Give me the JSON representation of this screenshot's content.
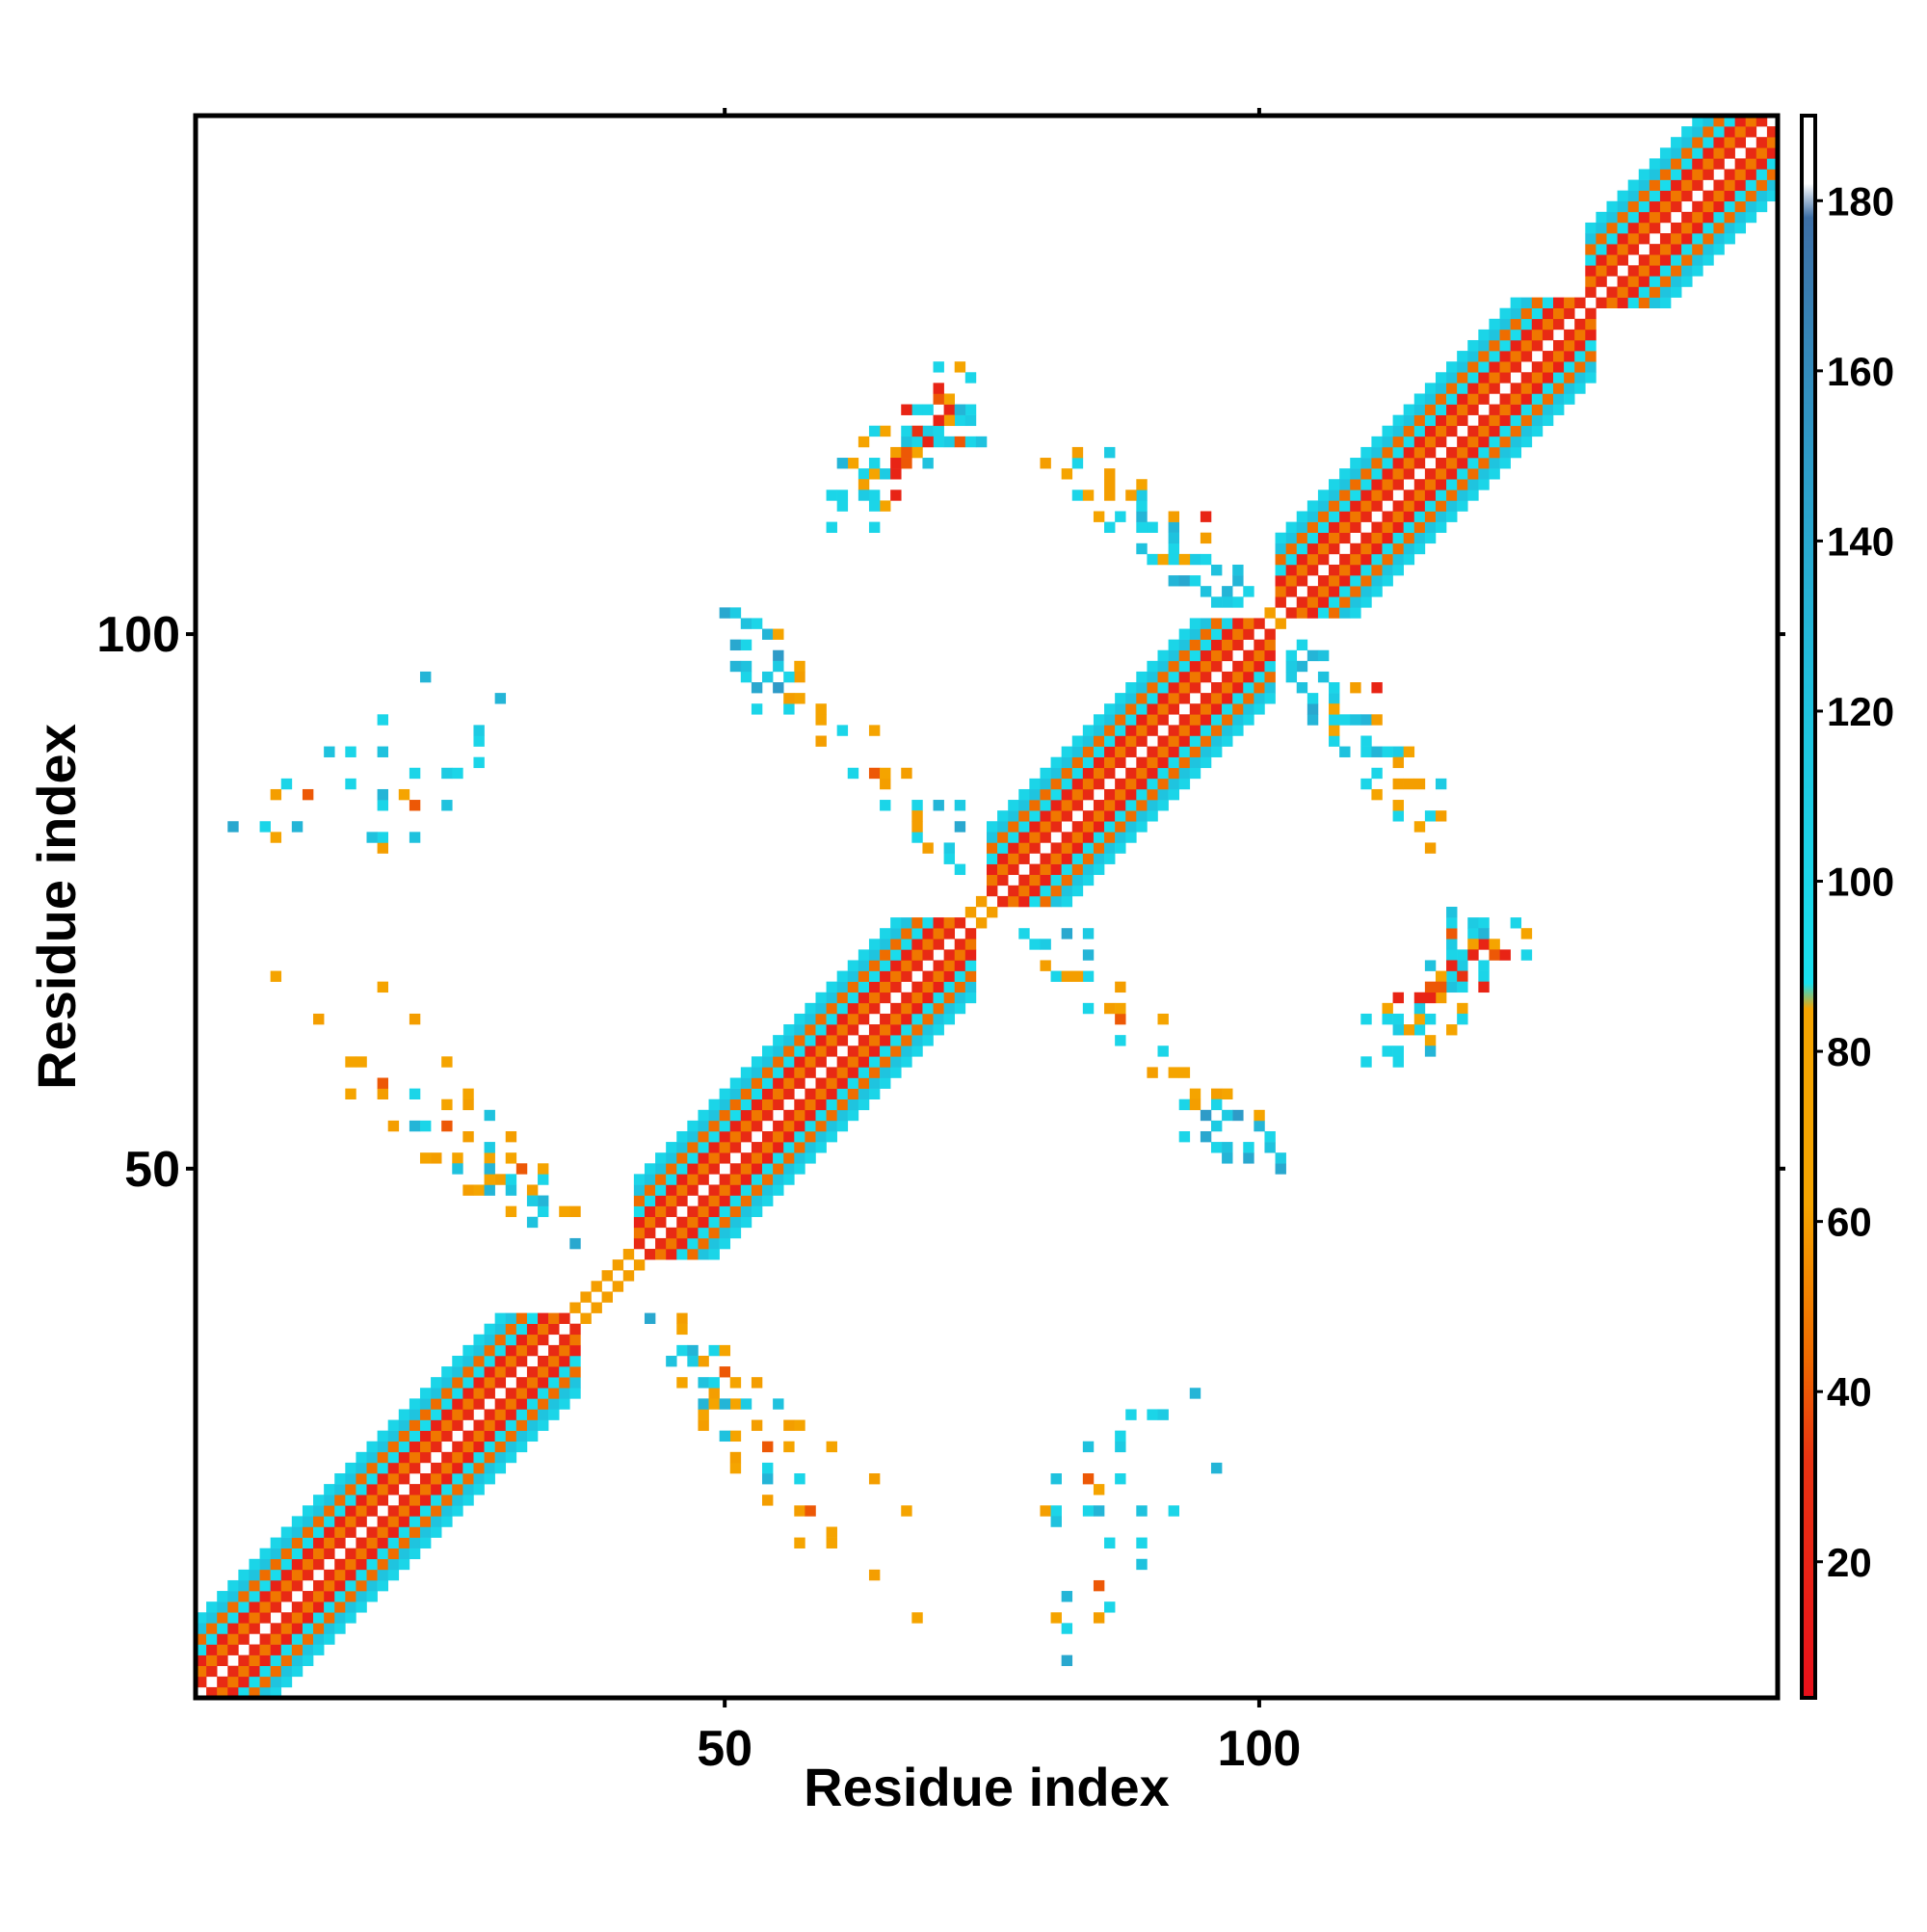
{
  "chart_data": {
    "type": "heatmap",
    "title": "",
    "xlabel": "Residue index",
    "ylabel": "Residue index",
    "xlim": [
      1,
      148
    ],
    "ylim": [
      1,
      148
    ],
    "x_ticks": [
      50,
      100
    ],
    "y_ticks": [
      50,
      100
    ],
    "colorbar": {
      "range": [
        4,
        190
      ],
      "ticks": [
        20,
        40,
        60,
        80,
        100,
        120,
        140,
        160,
        180
      ],
      "stops": [
        {
          "value": 4,
          "color": "#e8101a"
        },
        {
          "value": 32,
          "color": "#e83312"
        },
        {
          "value": 44,
          "color": "#ef6a00"
        },
        {
          "value": 62,
          "color": "#f5a400"
        },
        {
          "value": 85,
          "color": "#f5a400"
        },
        {
          "value": 88,
          "color": "#19e0ee"
        },
        {
          "value": 120,
          "color": "#1fc2de"
        },
        {
          "value": 150,
          "color": "#2e9bc8"
        },
        {
          "value": 178,
          "color": "#3d6fa6"
        },
        {
          "value": 182,
          "color": "#ffffff"
        },
        {
          "value": 190,
          "color": "#ffffff"
        }
      ]
    },
    "band_pattern_offsets": [
      {
        "offset": 1,
        "value": 25
      },
      {
        "offset": 2,
        "value": 48
      },
      {
        "offset": 3,
        "value": 18
      },
      {
        "offset": 4,
        "value": 92
      },
      {
        "offset": 5,
        "value": 45
      },
      {
        "offset": 6,
        "value": 118
      },
      {
        "offset": 7,
        "value": 100
      }
    ],
    "helix_segments": [
      {
        "start": 1,
        "end": 35
      },
      {
        "start": 42,
        "end": 72
      },
      {
        "start": 75,
        "end": 100
      },
      {
        "start": 102,
        "end": 130
      },
      {
        "start": 131,
        "end": 148
      }
    ],
    "contacts": [
      {
        "x": 50,
        "y": 102,
        "v": 140
      },
      {
        "x": 51,
        "y": 102,
        "v": 110
      },
      {
        "x": 52,
        "y": 101,
        "v": 120
      },
      {
        "x": 53,
        "y": 101,
        "v": 100
      },
      {
        "x": 51,
        "y": 99,
        "v": 140
      },
      {
        "x": 54,
        "y": 100,
        "v": 130
      },
      {
        "x": 55,
        "y": 100,
        "v": 70
      },
      {
        "x": 55,
        "y": 98,
        "v": 150
      },
      {
        "x": 57,
        "y": 97,
        "v": 80
      },
      {
        "x": 57,
        "y": 96,
        "v": 60
      },
      {
        "x": 57,
        "y": 94,
        "v": 70
      },
      {
        "x": 61,
        "y": 91,
        "v": 100
      },
      {
        "x": 64,
        "y": 91,
        "v": 70
      },
      {
        "x": 64,
        "y": 87,
        "v": 40
      },
      {
        "x": 67,
        "y": 87,
        "v": 60
      },
      {
        "x": 68,
        "y": 84,
        "v": 100
      },
      {
        "x": 70,
        "y": 84,
        "v": 130
      },
      {
        "x": 72,
        "y": 84,
        "v": 110
      },
      {
        "x": 72,
        "y": 82,
        "v": 140
      },
      {
        "x": 4,
        "y": 82,
        "v": 140
      },
      {
        "x": 7,
        "y": 82,
        "v": 100
      },
      {
        "x": 8,
        "y": 81,
        "v": 70
      },
      {
        "x": 10,
        "y": 82,
        "v": 130
      },
      {
        "x": 8,
        "y": 85,
        "v": 60
      },
      {
        "x": 9,
        "y": 86,
        "v": 100
      },
      {
        "x": 11,
        "y": 85,
        "v": 40
      },
      {
        "x": 13,
        "y": 89,
        "v": 120
      },
      {
        "x": 15,
        "y": 89,
        "v": 100
      },
      {
        "x": 15,
        "y": 86,
        "v": 100
      },
      {
        "x": 18,
        "y": 89,
        "v": 120
      },
      {
        "x": 18,
        "y": 92,
        "v": 100
      },
      {
        "x": 22,
        "y": 96,
        "v": 130
      },
      {
        "x": 8,
        "y": 68,
        "v": 70
      },
      {
        "x": 12,
        "y": 64,
        "v": 60
      },
      {
        "x": 15,
        "y": 60,
        "v": 70
      },
      {
        "x": 16,
        "y": 60,
        "v": 70
      },
      {
        "x": 15,
        "y": 57,
        "v": 70
      },
      {
        "x": 18,
        "y": 57,
        "v": 60
      },
      {
        "x": 18,
        "y": 58,
        "v": 40
      },
      {
        "x": 21,
        "y": 57,
        "v": 100
      },
      {
        "x": 19,
        "y": 54,
        "v": 60
      },
      {
        "x": 21,
        "y": 54,
        "v": 130
      },
      {
        "x": 22,
        "y": 54,
        "v": 100
      },
      {
        "x": 24,
        "y": 54,
        "v": 40
      },
      {
        "x": 22,
        "y": 51,
        "v": 70
      },
      {
        "x": 23,
        "y": 51,
        "v": 60
      },
      {
        "x": 25,
        "y": 51,
        "v": 70
      },
      {
        "x": 25,
        "y": 50,
        "v": 120
      },
      {
        "x": 28,
        "y": 51,
        "v": 70
      },
      {
        "x": 26,
        "y": 48,
        "v": 60
      },
      {
        "x": 27,
        "y": 48,
        "v": 70
      },
      {
        "x": 28,
        "y": 48,
        "v": 130
      },
      {
        "x": 29,
        "y": 49,
        "v": 60
      },
      {
        "x": 30,
        "y": 48,
        "v": 60
      },
      {
        "x": 32,
        "y": 48,
        "v": 60
      },
      {
        "x": 32,
        "y": 45,
        "v": 120
      },
      {
        "x": 43,
        "y": 36,
        "v": 140
      },
      {
        "x": 46,
        "y": 36,
        "v": 60
      },
      {
        "x": 46,
        "y": 35,
        "v": 70
      },
      {
        "x": 46,
        "y": 33,
        "v": 100
      },
      {
        "x": 47,
        "y": 33,
        "v": 130
      },
      {
        "x": 49,
        "y": 33,
        "v": 100
      },
      {
        "x": 50,
        "y": 33,
        "v": 70
      },
      {
        "x": 47,
        "y": 32,
        "v": 110
      },
      {
        "x": 50,
        "y": 31,
        "v": 40
      },
      {
        "x": 46,
        "y": 30,
        "v": 70
      },
      {
        "x": 48,
        "y": 30,
        "v": 120
      },
      {
        "x": 49,
        "y": 30,
        "v": 100
      },
      {
        "x": 51,
        "y": 30,
        "v": 70
      },
      {
        "x": 53,
        "y": 30,
        "v": 60
      },
      {
        "x": 49,
        "y": 28,
        "v": 70
      },
      {
        "x": 50,
        "y": 28,
        "v": 130
      },
      {
        "x": 52,
        "y": 28,
        "v": 110
      },
      {
        "x": 55,
        "y": 28,
        "v": 120
      },
      {
        "x": 53,
        "y": 26,
        "v": 60
      },
      {
        "x": 56,
        "y": 26,
        "v": 60
      },
      {
        "x": 57,
        "y": 26,
        "v": 70
      },
      {
        "x": 56,
        "y": 24,
        "v": 70
      },
      {
        "x": 60,
        "y": 24,
        "v": 70
      },
      {
        "x": 64,
        "y": 21,
        "v": 60
      },
      {
        "x": 67,
        "y": 18,
        "v": 70
      },
      {
        "x": 80,
        "y": 18,
        "v": 60
      },
      {
        "x": 81,
        "y": 18,
        "v": 100
      },
      {
        "x": 81,
        "y": 17,
        "v": 120
      },
      {
        "x": 84,
        "y": 18,
        "v": 100
      },
      {
        "x": 85,
        "y": 18,
        "v": 130
      },
      {
        "x": 81,
        "y": 21,
        "v": 120
      },
      {
        "x": 84,
        "y": 21,
        "v": 40
      },
      {
        "x": 85,
        "y": 20,
        "v": 70
      },
      {
        "x": 87,
        "y": 21,
        "v": 100
      },
      {
        "x": 84,
        "y": 24,
        "v": 120
      },
      {
        "x": 87,
        "y": 24,
        "v": 110
      },
      {
        "x": 87,
        "y": 25,
        "v": 100
      },
      {
        "x": 88,
        "y": 27,
        "v": 100
      },
      {
        "x": 90,
        "y": 27,
        "v": 100
      },
      {
        "x": 91,
        "y": 27,
        "v": 110
      },
      {
        "x": 94,
        "y": 29,
        "v": 130
      },
      {
        "x": 68,
        "y": 121,
        "v": 100
      },
      {
        "x": 69,
        "y": 121,
        "v": 130
      },
      {
        "x": 71,
        "y": 121,
        "v": 70
      },
      {
        "x": 72,
        "y": 120,
        "v": 100
      },
      {
        "x": 73,
        "y": 120,
        "v": 110
      },
      {
        "x": 69,
        "y": 119,
        "v": 110
      },
      {
        "x": 70,
        "y": 119,
        "v": 40
      },
      {
        "x": 67,
        "y": 118,
        "v": 20
      },
      {
        "x": 68,
        "y": 118,
        "v": 100
      },
      {
        "x": 70,
        "y": 118,
        "v": 130
      },
      {
        "x": 71,
        "y": 118,
        "v": 110
      },
      {
        "x": 72,
        "y": 118,
        "v": 40
      },
      {
        "x": 73,
        "y": 118,
        "v": 100
      },
      {
        "x": 74,
        "y": 118,
        "v": 120
      },
      {
        "x": 66,
        "y": 117,
        "v": 60
      },
      {
        "x": 68,
        "y": 117,
        "v": 20
      },
      {
        "x": 66,
        "y": 116,
        "v": 20
      },
      {
        "x": 67,
        "y": 116,
        "v": 70
      },
      {
        "x": 69,
        "y": 116,
        "v": 120
      },
      {
        "x": 62,
        "y": 116,
        "v": 70
      },
      {
        "x": 63,
        "y": 115,
        "v": 100
      },
      {
        "x": 64,
        "y": 115,
        "v": 100
      },
      {
        "x": 65,
        "y": 115,
        "v": 110
      },
      {
        "x": 63,
        "y": 114,
        "v": 60
      },
      {
        "x": 64,
        "y": 113,
        "v": 100
      },
      {
        "x": 66,
        "y": 113,
        "v": 20
      },
      {
        "x": 65,
        "y": 112,
        "v": 70
      },
      {
        "x": 60,
        "y": 113,
        "v": 100
      },
      {
        "x": 63,
        "y": 113,
        "v": 110
      },
      {
        "x": 60,
        "y": 110,
        "v": 100
      },
      {
        "x": 64,
        "y": 110,
        "v": 100
      },
      {
        "x": 80,
        "y": 116,
        "v": 60
      },
      {
        "x": 83,
        "y": 116,
        "v": 100
      },
      {
        "x": 82,
        "y": 115,
        "v": 70
      },
      {
        "x": 83,
        "y": 113,
        "v": 100
      },
      {
        "x": 84,
        "y": 113,
        "v": 70
      },
      {
        "x": 86,
        "y": 113,
        "v": 60
      },
      {
        "x": 85,
        "y": 111,
        "v": 70
      },
      {
        "x": 87,
        "y": 111,
        "v": 100
      },
      {
        "x": 86,
        "y": 110,
        "v": 100
      },
      {
        "x": 89,
        "y": 110,
        "v": 100
      },
      {
        "x": 90,
        "y": 110,
        "v": 110
      },
      {
        "x": 92,
        "y": 110,
        "v": 30
      },
      {
        "x": 89,
        "y": 108,
        "v": 120
      },
      {
        "x": 90,
        "y": 107,
        "v": 100
      },
      {
        "x": 91,
        "y": 107,
        "v": 70
      },
      {
        "x": 92,
        "y": 107,
        "v": 100
      },
      {
        "x": 94,
        "y": 107,
        "v": 110
      },
      {
        "x": 92,
        "y": 105,
        "v": 130
      },
      {
        "x": 93,
        "y": 105,
        "v": 140
      },
      {
        "x": 94,
        "y": 105,
        "v": 100
      },
      {
        "x": 96,
        "y": 106,
        "v": 100
      },
      {
        "x": 95,
        "y": 104,
        "v": 120
      },
      {
        "x": 97,
        "y": 104,
        "v": 130
      },
      {
        "x": 96,
        "y": 103,
        "v": 110
      },
      {
        "x": 98,
        "y": 103,
        "v": 100
      },
      {
        "x": 97,
        "y": 101,
        "v": 100
      },
      {
        "x": 104,
        "y": 99,
        "v": 100
      },
      {
        "x": 105,
        "y": 98,
        "v": 130
      },
      {
        "x": 106,
        "y": 98,
        "v": 120
      },
      {
        "x": 103,
        "y": 97,
        "v": 110
      },
      {
        "x": 106,
        "y": 96,
        "v": 120
      },
      {
        "x": 107,
        "y": 95,
        "v": 100
      },
      {
        "x": 109,
        "y": 95,
        "v": 60
      },
      {
        "x": 111,
        "y": 95,
        "v": 20
      },
      {
        "x": 107,
        "y": 93,
        "v": 70
      },
      {
        "x": 108,
        "y": 92,
        "v": 100
      },
      {
        "x": 109,
        "y": 92,
        "v": 120
      },
      {
        "x": 110,
        "y": 92,
        "v": 130
      },
      {
        "x": 111,
        "y": 92,
        "v": 60
      },
      {
        "x": 110,
        "y": 90,
        "v": 100
      },
      {
        "x": 111,
        "y": 89,
        "v": 130
      },
      {
        "x": 112,
        "y": 89,
        "v": 100
      },
      {
        "x": 113,
        "y": 89,
        "v": 110
      },
      {
        "x": 114,
        "y": 89,
        "v": 70
      },
      {
        "x": 113,
        "y": 88,
        "v": 60
      },
      {
        "x": 114,
        "y": 86,
        "v": 60
      },
      {
        "x": 115,
        "y": 86,
        "v": 60
      },
      {
        "x": 117,
        "y": 86,
        "v": 110
      },
      {
        "x": 117,
        "y": 83,
        "v": 60
      },
      {
        "x": 78,
        "y": 72,
        "v": 100
      },
      {
        "x": 79,
        "y": 71,
        "v": 100
      },
      {
        "x": 80,
        "y": 71,
        "v": 110
      },
      {
        "x": 80,
        "y": 69,
        "v": 60
      },
      {
        "x": 81,
        "y": 68,
        "v": 100
      },
      {
        "x": 82,
        "y": 68,
        "v": 60
      },
      {
        "x": 83,
        "y": 68,
        "v": 60
      },
      {
        "x": 84,
        "y": 65,
        "v": 100
      },
      {
        "x": 86,
        "y": 65,
        "v": 60
      },
      {
        "x": 87,
        "y": 65,
        "v": 70
      },
      {
        "x": 87,
        "y": 62,
        "v": 100
      },
      {
        "x": 90,
        "y": 59,
        "v": 60
      },
      {
        "x": 92,
        "y": 59,
        "v": 70
      },
      {
        "x": 93,
        "y": 59,
        "v": 70
      },
      {
        "x": 93,
        "y": 56,
        "v": 100
      },
      {
        "x": 94,
        "y": 56,
        "v": 60
      },
      {
        "x": 95,
        "y": 55,
        "v": 150
      },
      {
        "x": 96,
        "y": 56,
        "v": 100
      },
      {
        "x": 97,
        "y": 55,
        "v": 110
      },
      {
        "x": 96,
        "y": 54,
        "v": 110
      },
      {
        "x": 93,
        "y": 53,
        "v": 100
      },
      {
        "x": 95,
        "y": 53,
        "v": 140
      },
      {
        "x": 96,
        "y": 52,
        "v": 100
      },
      {
        "x": 97,
        "y": 52,
        "v": 120
      },
      {
        "x": 97,
        "y": 51,
        "v": 130
      },
      {
        "x": 99,
        "y": 52,
        "v": 100
      },
      {
        "x": 121,
        "y": 73,
        "v": 100
      },
      {
        "x": 124,
        "y": 73,
        "v": 100
      },
      {
        "x": 121,
        "y": 72,
        "v": 130
      },
      {
        "x": 125,
        "y": 72,
        "v": 70
      },
      {
        "x": 120,
        "y": 71,
        "v": 60
      },
      {
        "x": 121,
        "y": 71,
        "v": 20
      },
      {
        "x": 122,
        "y": 71,
        "v": 70
      },
      {
        "x": 118,
        "y": 70,
        "v": 100
      },
      {
        "x": 119,
        "y": 70,
        "v": 100
      },
      {
        "x": 120,
        "y": 70,
        "v": 20
      },
      {
        "x": 122,
        "y": 70,
        "v": 40
      },
      {
        "x": 123,
        "y": 70,
        "v": 20
      },
      {
        "x": 125,
        "y": 70,
        "v": 100
      },
      {
        "x": 118,
        "y": 69,
        "v": 20
      },
      {
        "x": 121,
        "y": 69,
        "v": 100
      },
      {
        "x": 117,
        "y": 68,
        "v": 70
      },
      {
        "x": 119,
        "y": 68,
        "v": 30
      },
      {
        "x": 116,
        "y": 67,
        "v": 40
      },
      {
        "x": 117,
        "y": 67,
        "v": 40
      },
      {
        "x": 118,
        "y": 67,
        "v": 120
      },
      {
        "x": 119,
        "y": 67,
        "v": 100
      },
      {
        "x": 121,
        "y": 67,
        "v": 20
      },
      {
        "x": 115,
        "y": 66,
        "v": 20
      },
      {
        "x": 119,
        "y": 65,
        "v": 70
      },
      {
        "x": 112,
        "y": 64,
        "v": 100
      },
      {
        "x": 115,
        "y": 64,
        "v": 70
      },
      {
        "x": 116,
        "y": 64,
        "v": 100
      },
      {
        "x": 119,
        "y": 64,
        "v": 100
      },
      {
        "x": 118,
        "y": 63,
        "v": 70
      },
      {
        "x": 115,
        "y": 63,
        "v": 100
      },
      {
        "x": 112,
        "y": 61,
        "v": 100
      },
      {
        "x": 113,
        "y": 61,
        "v": 100
      },
      {
        "x": 116,
        "y": 61,
        "v": 130
      }
    ]
  }
}
